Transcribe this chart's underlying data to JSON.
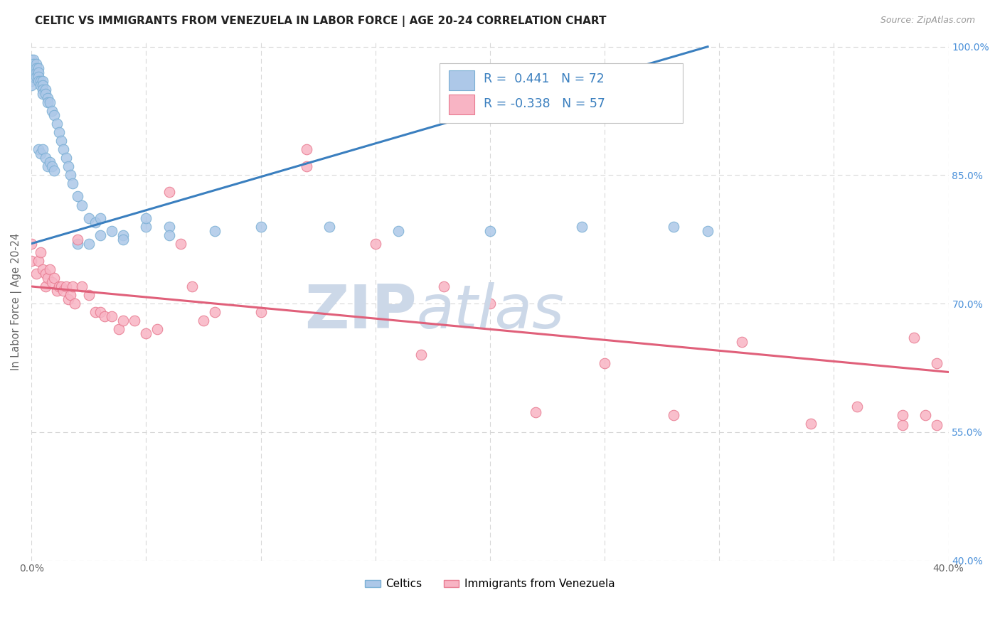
{
  "title": "CELTIC VS IMMIGRANTS FROM VENEZUELA IN LABOR FORCE | AGE 20-24 CORRELATION CHART",
  "source": "Source: ZipAtlas.com",
  "ylabel": "In Labor Force | Age 20-24",
  "x_min": 0.0,
  "x_max": 0.4,
  "y_min": 0.4,
  "y_max": 1.005,
  "x_ticks": [
    0.0,
    0.05,
    0.1,
    0.15,
    0.2,
    0.25,
    0.3,
    0.35,
    0.4
  ],
  "y_ticks": [
    0.4,
    0.55,
    0.7,
    0.85,
    1.0
  ],
  "y_tick_labels_right": [
    "40.0%",
    "55.0%",
    "70.0%",
    "85.0%",
    "100.0%"
  ],
  "celtics_R": 0.441,
  "celtics_N": 72,
  "venezuela_R": -0.338,
  "venezuela_N": 57,
  "celtics_color": "#adc8e8",
  "celtics_edge_color": "#7aafd4",
  "venezuela_color": "#f8b4c4",
  "venezuela_edge_color": "#e87a90",
  "trendline_celtics_color": "#3a7fbf",
  "trendline_venezuela_color": "#e0607a",
  "watermark_zip": "ZIP",
  "watermark_atlas": "atlas",
  "watermark_color": "#ccd8e8",
  "legend_facecolor": "#ffffff",
  "legend_edgecolor": "#c8c8c8",
  "grid_color": "#d8d8d8",
  "celtics_x": [
    0.0,
    0.0,
    0.0,
    0.0,
    0.0,
    0.0,
    0.0,
    0.001,
    0.001,
    0.001,
    0.001,
    0.001,
    0.002,
    0.002,
    0.002,
    0.002,
    0.003,
    0.003,
    0.003,
    0.003,
    0.003,
    0.004,
    0.004,
    0.004,
    0.005,
    0.005,
    0.005,
    0.005,
    0.005,
    0.006,
    0.006,
    0.006,
    0.007,
    0.007,
    0.007,
    0.008,
    0.008,
    0.009,
    0.009,
    0.01,
    0.01,
    0.011,
    0.012,
    0.013,
    0.014,
    0.015,
    0.016,
    0.017,
    0.018,
    0.02,
    0.022,
    0.025,
    0.028,
    0.03,
    0.035,
    0.04,
    0.05,
    0.06,
    0.08,
    0.1,
    0.13,
    0.16,
    0.2,
    0.24,
    0.28,
    0.295,
    0.02,
    0.025,
    0.03,
    0.04,
    0.05,
    0.06
  ],
  "celtics_y": [
    0.985,
    0.98,
    0.975,
    0.97,
    0.965,
    0.96,
    0.955,
    0.985,
    0.98,
    0.975,
    0.97,
    0.965,
    0.98,
    0.975,
    0.97,
    0.965,
    0.975,
    0.97,
    0.965,
    0.96,
    0.88,
    0.96,
    0.955,
    0.875,
    0.96,
    0.955,
    0.95,
    0.945,
    0.88,
    0.95,
    0.945,
    0.87,
    0.94,
    0.935,
    0.86,
    0.935,
    0.865,
    0.925,
    0.86,
    0.92,
    0.855,
    0.91,
    0.9,
    0.89,
    0.88,
    0.87,
    0.86,
    0.85,
    0.84,
    0.825,
    0.815,
    0.8,
    0.795,
    0.8,
    0.785,
    0.78,
    0.79,
    0.79,
    0.785,
    0.79,
    0.79,
    0.785,
    0.785,
    0.79,
    0.79,
    0.785,
    0.77,
    0.77,
    0.78,
    0.775,
    0.8,
    0.78
  ],
  "venezuela_x": [
    0.0,
    0.0,
    0.002,
    0.003,
    0.004,
    0.005,
    0.006,
    0.006,
    0.007,
    0.008,
    0.009,
    0.01,
    0.011,
    0.012,
    0.013,
    0.014,
    0.015,
    0.016,
    0.017,
    0.018,
    0.019,
    0.02,
    0.022,
    0.025,
    0.028,
    0.03,
    0.032,
    0.035,
    0.038,
    0.04,
    0.045,
    0.05,
    0.055,
    0.06,
    0.065,
    0.07,
    0.075,
    0.08,
    0.1,
    0.12,
    0.15,
    0.17,
    0.2,
    0.22,
    0.25,
    0.28,
    0.31,
    0.34,
    0.36,
    0.38,
    0.39,
    0.395,
    0.395,
    0.12,
    0.18,
    0.38,
    0.385
  ],
  "venezuela_y": [
    0.77,
    0.75,
    0.735,
    0.75,
    0.76,
    0.74,
    0.735,
    0.72,
    0.73,
    0.74,
    0.725,
    0.73,
    0.715,
    0.72,
    0.72,
    0.715,
    0.72,
    0.705,
    0.71,
    0.72,
    0.7,
    0.775,
    0.72,
    0.71,
    0.69,
    0.69,
    0.685,
    0.685,
    0.67,
    0.68,
    0.68,
    0.665,
    0.67,
    0.83,
    0.77,
    0.72,
    0.68,
    0.69,
    0.69,
    0.86,
    0.77,
    0.64,
    0.7,
    0.573,
    0.63,
    0.57,
    0.655,
    0.56,
    0.58,
    0.558,
    0.57,
    0.558,
    0.63,
    0.88,
    0.72,
    0.57,
    0.66
  ],
  "trendline_celtics_x0": 0.0,
  "trendline_celtics_x1": 0.295,
  "trendline_celtics_y0": 0.77,
  "trendline_celtics_y1": 1.0,
  "trendline_venezuela_x0": 0.0,
  "trendline_venezuela_x1": 0.4,
  "trendline_venezuela_y0": 0.72,
  "trendline_venezuela_y1": 0.62
}
